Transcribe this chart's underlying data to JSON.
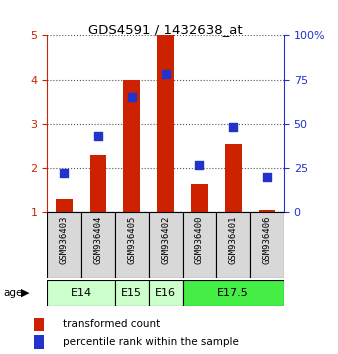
{
  "title": "GDS4591 / 1432638_at",
  "samples": [
    "GSM936403",
    "GSM936404",
    "GSM936405",
    "GSM936402",
    "GSM936400",
    "GSM936401",
    "GSM936406"
  ],
  "transformed_counts": [
    1.3,
    2.3,
    4.0,
    5.0,
    1.65,
    2.55,
    1.05
  ],
  "percentile_ranks": [
    22,
    43,
    65,
    78,
    27,
    48,
    20
  ],
  "age_group_spans": [
    {
      "label": "E14",
      "start": 0,
      "end": 2,
      "color": "#ccffcc"
    },
    {
      "label": "E15",
      "start": 2,
      "end": 3,
      "color": "#ccffcc"
    },
    {
      "label": "E16",
      "start": 3,
      "end": 4,
      "color": "#ccffcc"
    },
    {
      "label": "E17.5",
      "start": 4,
      "end": 7,
      "color": "#44ee44"
    }
  ],
  "ylim_left": [
    1,
    5
  ],
  "ylim_right": [
    0,
    100
  ],
  "yticks_left": [
    1,
    2,
    3,
    4,
    5
  ],
  "yticks_right": [
    0,
    25,
    50,
    75,
    100
  ],
  "bar_color": "#cc2200",
  "dot_color": "#2233cc",
  "bar_width": 0.5,
  "dot_size": 35,
  "legend_items": [
    "transformed count",
    "percentile rank within the sample"
  ],
  "sample_bg_color": "#d8d8d8",
  "plot_bg_color": "#ffffff"
}
